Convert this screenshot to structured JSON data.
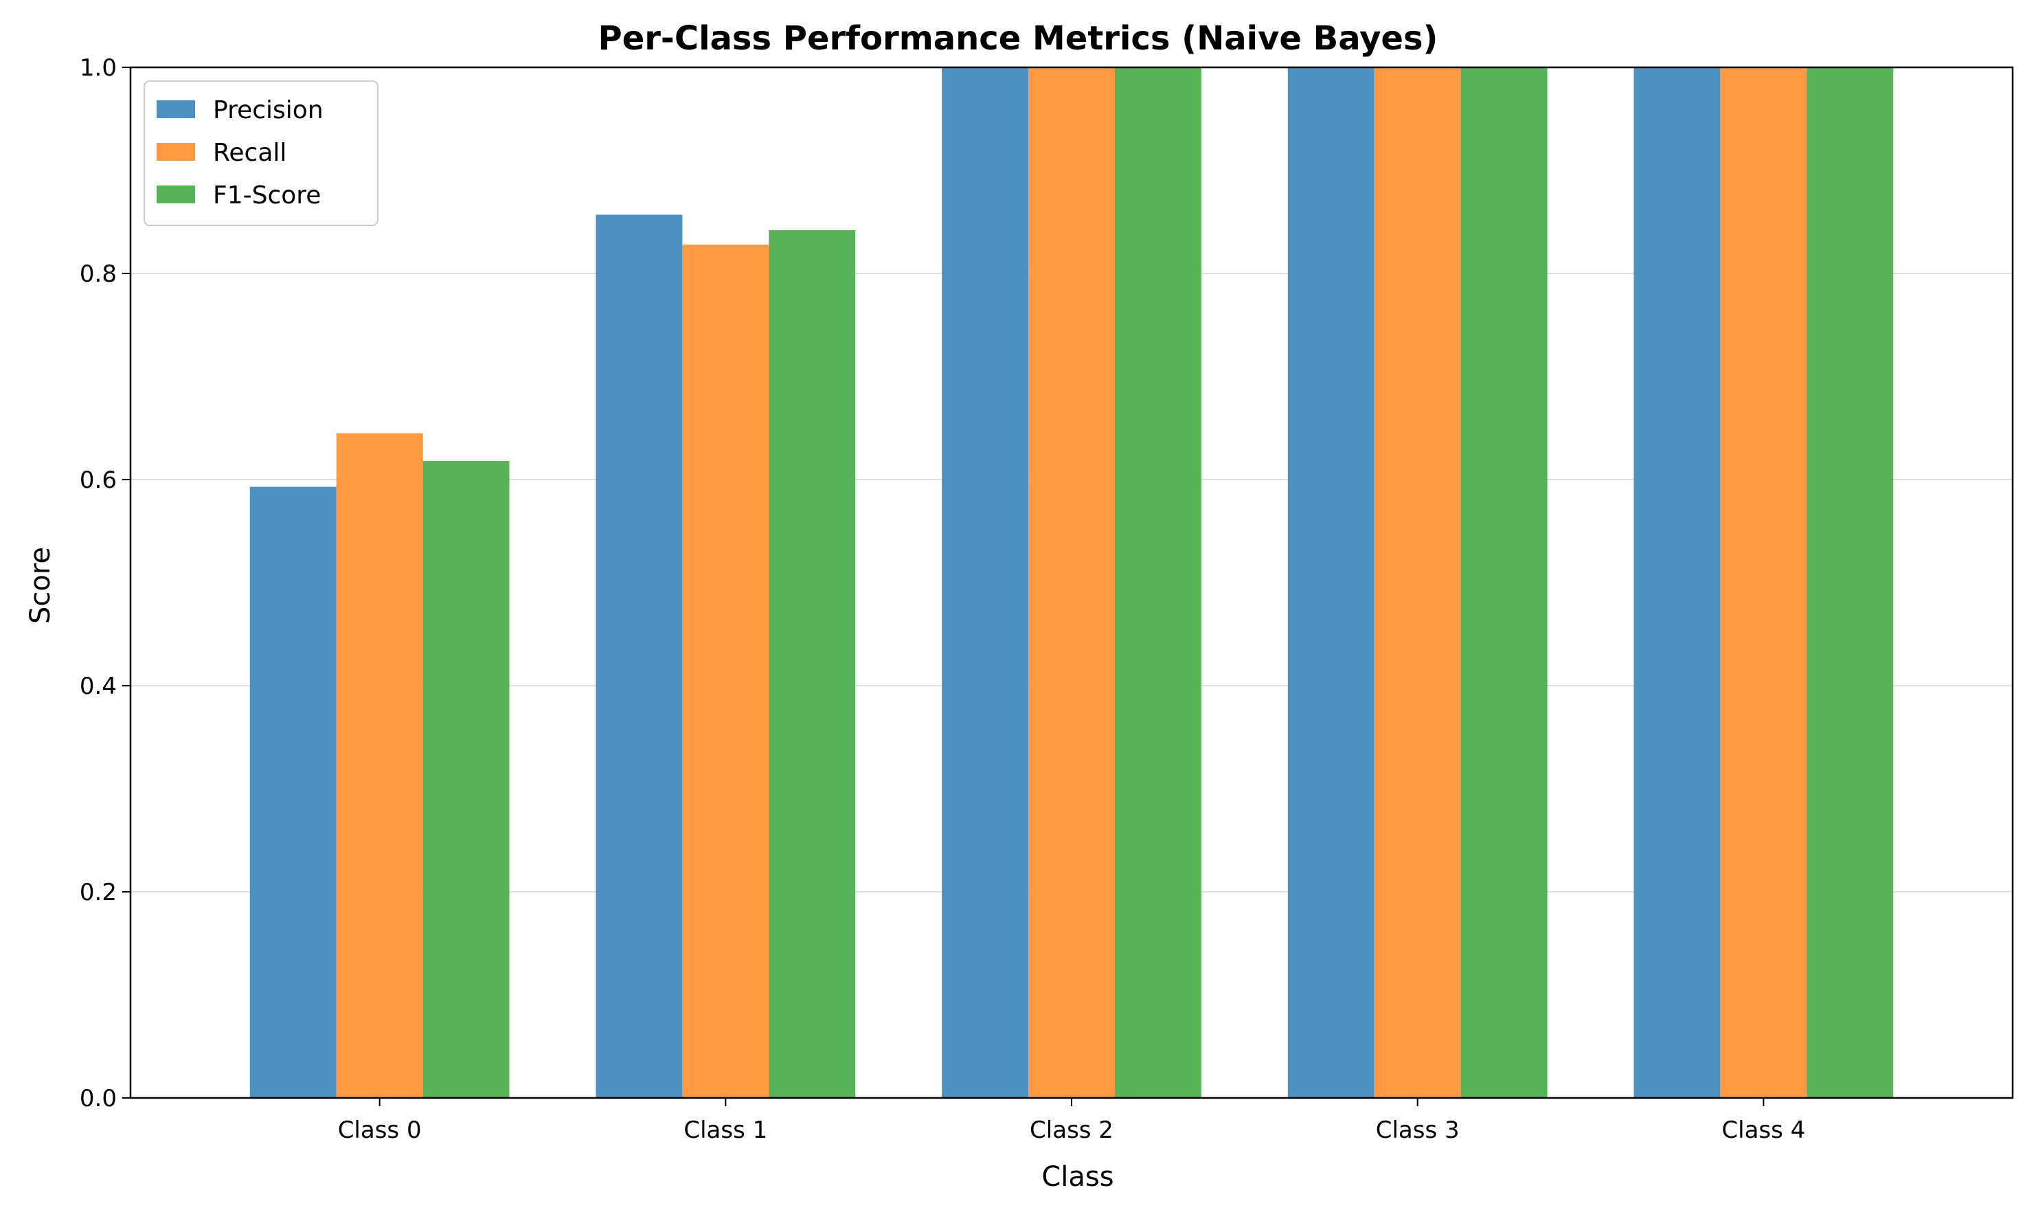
{
  "chart_data": {
    "type": "bar",
    "title": "Per-Class Performance Metrics (Naive Bayes)",
    "xlabel": "Class",
    "ylabel": "Score",
    "ylim": [
      0,
      1.0
    ],
    "yticks": [
      "0.0",
      "0.2",
      "0.4",
      "0.6",
      "0.8",
      "1.0"
    ],
    "grid": "y",
    "legend_position": "top-left",
    "categories": [
      "Class 0",
      "Class 1",
      "Class 2",
      "Class 3",
      "Class 4"
    ],
    "series": [
      {
        "name": "Precision",
        "color": "#4c91c2",
        "values": [
          0.593,
          0.857,
          1.0,
          1.0,
          1.0
        ]
      },
      {
        "name": "Recall",
        "color": "#ff9a42",
        "values": [
          0.645,
          0.828,
          1.0,
          1.0,
          1.0
        ]
      },
      {
        "name": "F1-Score",
        "color": "#58b257",
        "values": [
          0.618,
          0.842,
          1.0,
          1.0,
          1.0
        ]
      }
    ]
  }
}
